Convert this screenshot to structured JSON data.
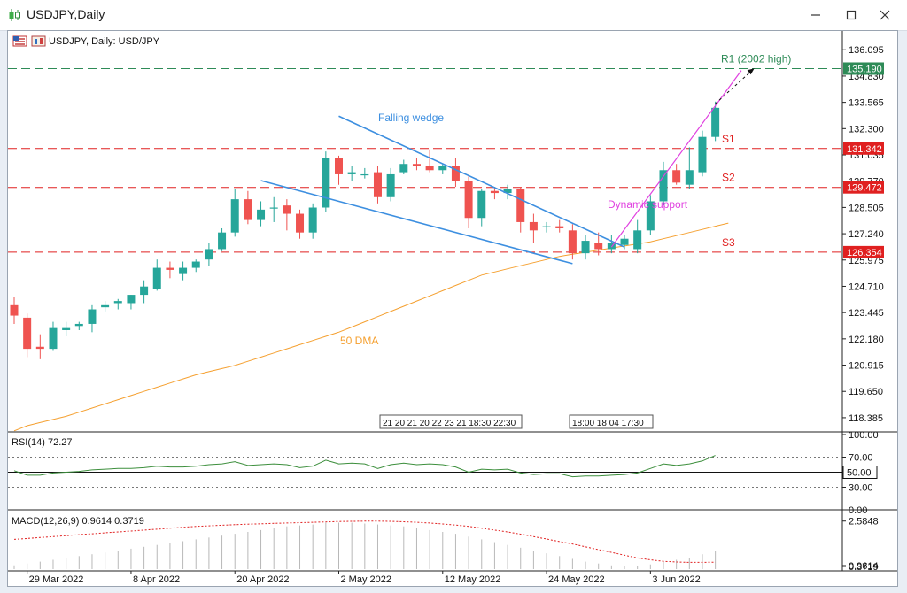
{
  "window": {
    "title": "USDJPY,Daily",
    "controls": [
      "minimize-icon",
      "maximize-icon",
      "close-icon"
    ]
  },
  "chart": {
    "header": "USDJPY, Daily:  USD/JPY",
    "symbol_icons": [
      "flag-icon",
      "chart-icon"
    ]
  },
  "price_axis": {
    "ticks": [
      "136.095",
      "134.830",
      "133.565",
      "132.300",
      "131.035",
      "129.770",
      "128.505",
      "127.240",
      "125.975",
      "124.710",
      "123.445",
      "122.180",
      "120.915",
      "119.650",
      "118.385"
    ]
  },
  "levels": [
    {
      "name": "R1",
      "label": "R1 (2002 high)",
      "price": 135.19,
      "tag": "135.190",
      "color": "#2e8b57"
    },
    {
      "name": "S1",
      "label": "S1",
      "price": 131.342,
      "tag": "131.342",
      "color": "#e02020"
    },
    {
      "name": "S2",
      "label": "S2",
      "price": 129.472,
      "tag": "129.472",
      "color": "#e02020"
    },
    {
      "name": "S3",
      "label": "S3",
      "price": 126.354,
      "tag": "126.354",
      "color": "#e02020"
    }
  ],
  "annotations": {
    "wedge": "Falling wedge",
    "support": "Dynamic support",
    "dma": "50 DMA"
  },
  "time_labels": {
    "group1": "21 20 21 20 22 23 21 18:30 22:30",
    "group2": "18:00 18 04 17:30"
  },
  "date_axis": [
    "29 Mar 2022",
    "8 Apr 2022",
    "20 Apr 2022",
    "2 May 2022",
    "12 May 2022",
    "24 May 2022",
    "3 Jun 2022"
  ],
  "rsi": {
    "label": "RSI(14) 72.27",
    "ticks": [
      "100.00",
      "70.00",
      "50.00",
      "30.00",
      "0.00"
    ],
    "current": 72.27,
    "level": 50,
    "level_tag": "50.00"
  },
  "macd": {
    "label": "MACD(12,26,9) 0.9614 0.3719",
    "ticks": [
      "2.5848",
      "0.9614",
      "0.3719"
    ],
    "main": 0.9614,
    "signal": 0.3719
  },
  "colors": {
    "bull": "#26a69a",
    "bear": "#ef5350",
    "wedge": "#3d8fe0",
    "support": "#e040e0",
    "dma": "#f5a030",
    "rsi": "#3d8f3d",
    "macd_signal": "#e02020"
  },
  "chart_data": {
    "type": "candlestick",
    "candles": [
      {
        "date": "28 Mar 2022",
        "open": 123.8,
        "high": 124.2,
        "low": 122.9,
        "close": 123.3
      },
      {
        "date": "29 Mar 2022",
        "open": 123.2,
        "high": 123.4,
        "low": 121.3,
        "close": 121.7
      },
      {
        "date": "30 Mar 2022",
        "open": 121.8,
        "high": 122.4,
        "low": 121.2,
        "close": 121.7
      },
      {
        "date": "31 Mar 2022",
        "open": 121.7,
        "high": 123.0,
        "low": 121.6,
        "close": 122.7
      },
      {
        "date": "1 Apr 2022",
        "open": 122.6,
        "high": 123.0,
        "low": 122.3,
        "close": 122.7
      },
      {
        "date": "4 Apr 2022",
        "open": 122.8,
        "high": 123.0,
        "low": 122.6,
        "close": 122.9
      },
      {
        "date": "5 Apr 2022",
        "open": 122.9,
        "high": 123.8,
        "low": 122.5,
        "close": 123.6
      },
      {
        "date": "6 Apr 2022",
        "open": 123.7,
        "high": 124.0,
        "low": 123.5,
        "close": 123.8
      },
      {
        "date": "7 Apr 2022",
        "open": 123.9,
        "high": 124.1,
        "low": 123.6,
        "close": 124.0
      },
      {
        "date": "8 Apr 2022",
        "open": 123.9,
        "high": 124.3,
        "low": 123.6,
        "close": 124.3
      },
      {
        "date": "11 Apr 2022",
        "open": 124.3,
        "high": 125.0,
        "low": 123.9,
        "close": 124.7
      },
      {
        "date": "12 Apr 2022",
        "open": 124.6,
        "high": 126.0,
        "low": 124.5,
        "close": 125.6
      },
      {
        "date": "13 Apr 2022",
        "open": 125.6,
        "high": 125.9,
        "low": 125.1,
        "close": 125.5
      },
      {
        "date": "14 Apr 2022",
        "open": 125.3,
        "high": 125.9,
        "low": 125.0,
        "close": 125.6
      },
      {
        "date": "15 Apr 2022",
        "open": 125.6,
        "high": 126.0,
        "low": 125.4,
        "close": 125.9
      },
      {
        "date": "18 Apr 2022",
        "open": 126.0,
        "high": 126.8,
        "low": 125.7,
        "close": 126.5
      },
      {
        "date": "19 Apr 2022",
        "open": 126.5,
        "high": 127.5,
        "low": 126.4,
        "close": 127.3
      },
      {
        "date": "20 Apr 2022",
        "open": 127.3,
        "high": 129.4,
        "low": 127.1,
        "close": 128.9
      },
      {
        "date": "21 Apr 2022",
        "open": 128.9,
        "high": 129.3,
        "low": 127.7,
        "close": 127.9
      },
      {
        "date": "22 Apr 2022",
        "open": 127.9,
        "high": 128.8,
        "low": 127.6,
        "close": 128.4
      },
      {
        "date": "25 Apr 2022",
        "open": 128.5,
        "high": 129.0,
        "low": 127.8,
        "close": 128.5
      },
      {
        "date": "26 Apr 2022",
        "open": 128.6,
        "high": 128.9,
        "low": 127.4,
        "close": 128.2
      },
      {
        "date": "27 Apr 2022",
        "open": 128.2,
        "high": 128.4,
        "low": 127.0,
        "close": 127.3
      },
      {
        "date": "28 Apr 2022",
        "open": 127.3,
        "high": 128.7,
        "low": 127.0,
        "close": 128.5
      },
      {
        "date": "29 Apr 2022",
        "open": 128.5,
        "high": 131.2,
        "low": 128.3,
        "close": 130.9
      },
      {
        "date": "2 May 2022",
        "open": 130.9,
        "high": 131.0,
        "low": 129.6,
        "close": 130.1
      },
      {
        "date": "3 May 2022",
        "open": 130.1,
        "high": 130.5,
        "low": 129.8,
        "close": 130.2
      },
      {
        "date": "4 May 2022",
        "open": 130.1,
        "high": 130.4,
        "low": 129.9,
        "close": 130.1
      },
      {
        "date": "5 May 2022",
        "open": 130.2,
        "high": 130.5,
        "low": 128.7,
        "close": 129.0
      },
      {
        "date": "6 May 2022",
        "open": 129.0,
        "high": 130.4,
        "low": 128.8,
        "close": 130.1
      },
      {
        "date": "9 May 2022",
        "open": 130.2,
        "high": 130.8,
        "low": 130.1,
        "close": 130.6
      },
      {
        "date": "10 May 2022",
        "open": 130.6,
        "high": 130.9,
        "low": 130.3,
        "close": 130.5
      },
      {
        "date": "11 May 2022",
        "open": 130.5,
        "high": 131.3,
        "low": 130.2,
        "close": 130.3
      },
      {
        "date": "12 May 2022",
        "open": 130.3,
        "high": 130.6,
        "low": 130.1,
        "close": 130.5
      },
      {
        "date": "13 May 2022",
        "open": 130.5,
        "high": 130.9,
        "low": 129.5,
        "close": 129.8
      },
      {
        "date": "16 May 2022",
        "open": 129.8,
        "high": 130.0,
        "low": 127.5,
        "close": 128.0
      },
      {
        "date": "17 May 2022",
        "open": 128.0,
        "high": 129.4,
        "low": 127.6,
        "close": 129.3
      },
      {
        "date": "18 May 2022",
        "open": 129.3,
        "high": 129.5,
        "low": 128.9,
        "close": 129.2
      },
      {
        "date": "19 May 2022",
        "open": 129.2,
        "high": 129.6,
        "low": 128.9,
        "close": 129.4
      },
      {
        "date": "20 May 2022",
        "open": 129.4,
        "high": 129.5,
        "low": 127.3,
        "close": 127.8
      },
      {
        "date": "23 May 2022",
        "open": 127.8,
        "high": 128.2,
        "low": 126.8,
        "close": 127.4
      },
      {
        "date": "24 May 2022",
        "open": 127.6,
        "high": 127.8,
        "low": 127.3,
        "close": 127.6
      },
      {
        "date": "25 May 2022",
        "open": 127.6,
        "high": 127.9,
        "low": 127.3,
        "close": 127.5
      },
      {
        "date": "26 May 2022",
        "open": 127.4,
        "high": 127.7,
        "low": 126.0,
        "close": 126.3
      },
      {
        "date": "27 May 2022",
        "open": 126.3,
        "high": 127.2,
        "low": 126.0,
        "close": 126.9
      },
      {
        "date": "30 May 2022",
        "open": 126.8,
        "high": 127.3,
        "low": 126.2,
        "close": 126.5
      },
      {
        "date": "31 May 2022",
        "open": 126.5,
        "high": 127.2,
        "low": 126.3,
        "close": 126.8
      },
      {
        "date": "1 Jun 2022",
        "open": 126.7,
        "high": 127.2,
        "low": 126.5,
        "close": 127.0
      },
      {
        "date": "2 Jun 2022",
        "open": 126.5,
        "high": 127.9,
        "low": 126.3,
        "close": 127.4
      },
      {
        "date": "3 Jun 2022",
        "open": 127.4,
        "high": 129.1,
        "low": 127.2,
        "close": 128.8
      },
      {
        "date": "6 Jun 2022",
        "open": 128.8,
        "high": 130.7,
        "low": 128.6,
        "close": 130.3
      },
      {
        "date": "7 Jun 2022",
        "open": 130.3,
        "high": 130.6,
        "low": 129.6,
        "close": 129.7
      },
      {
        "date": "8 Jun 2022",
        "open": 129.6,
        "high": 131.4,
        "low": 129.4,
        "close": 130.3
      },
      {
        "date": "9 Jun 2022",
        "open": 130.2,
        "high": 132.2,
        "low": 130.0,
        "close": 131.9
      },
      {
        "date": "10 Jun 2022",
        "open": 131.9,
        "high": 133.6,
        "low": 131.7,
        "close": 133.3
      }
    ],
    "ma50": [
      118.0,
      118.15,
      118.3,
      118.45,
      118.65,
      118.85,
      119.05,
      119.25,
      119.45,
      119.65,
      119.85,
      120.05,
      120.25,
      120.45,
      120.6,
      120.75,
      120.9,
      121.1,
      121.3,
      121.5,
      121.7,
      121.9,
      122.1,
      122.3,
      122.5,
      122.75,
      123.0,
      123.25,
      123.5,
      123.75,
      124.0,
      124.25,
      124.5,
      124.75,
      125.0,
      125.25,
      125.4,
      125.55,
      125.7,
      125.85,
      126.0,
      126.15,
      126.25,
      126.35,
      126.45,
      126.55,
      126.65,
      126.75,
      126.85,
      127.0,
      127.15,
      127.3,
      127.45,
      127.6,
      127.75
    ],
    "rsi": [
      52,
      46,
      46,
      49,
      50,
      51,
      53,
      54,
      55,
      55,
      56,
      58,
      57,
      57,
      58,
      60,
      61,
      64,
      59,
      60,
      61,
      60,
      56,
      58,
      66,
      61,
      62,
      61,
      55,
      60,
      62,
      60,
      61,
      60,
      57,
      50,
      54,
      53,
      54,
      49,
      47,
      48,
      48,
      44,
      45,
      45,
      46,
      47,
      49,
      55,
      61,
      59,
      61,
      65,
      72.27
    ],
    "macd_hist": [
      0.2,
      0.3,
      0.4,
      0.5,
      0.6,
      0.7,
      0.8,
      0.9,
      1.0,
      1.1,
      1.2,
      1.3,
      1.4,
      1.5,
      1.6,
      1.7,
      1.8,
      1.9,
      2.0,
      2.1,
      2.2,
      2.3,
      2.35,
      2.4,
      2.5,
      2.5,
      2.5,
      2.45,
      2.4,
      2.35,
      2.3,
      2.2,
      2.1,
      2.0,
      1.9,
      1.75,
      1.6,
      1.45,
      1.3,
      1.15,
      1.0,
      0.85,
      0.7,
      0.55,
      0.4,
      0.3,
      0.2,
      0.15,
      0.15,
      0.25,
      0.4,
      0.5,
      0.6,
      0.8,
      0.9614
    ],
    "macd_signal": [
      1.6,
      1.65,
      1.7,
      1.75,
      1.8,
      1.85,
      1.9,
      1.95,
      2.0,
      2.05,
      2.1,
      2.15,
      2.2,
      2.25,
      2.3,
      2.33,
      2.36,
      2.39,
      2.42,
      2.44,
      2.46,
      2.48,
      2.5,
      2.52,
      2.54,
      2.56,
      2.57,
      2.58,
      2.58,
      2.57,
      2.55,
      2.52,
      2.48,
      2.43,
      2.37,
      2.3,
      2.2,
      2.1,
      2.0,
      1.88,
      1.75,
      1.62,
      1.48,
      1.35,
      1.2,
      1.05,
      0.9,
      0.75,
      0.6,
      0.5,
      0.42,
      0.38,
      0.36,
      0.36,
      0.3719
    ],
    "wedge_upper": {
      "from": {
        "i": 25,
        "p": 132.9
      },
      "to": {
        "i": 47,
        "p": 126.6
      }
    },
    "wedge_lower": {
      "from": {
        "i": 19,
        "p": 129.8
      },
      "to": {
        "i": 43,
        "p": 125.8
      }
    },
    "dynamic_support": {
      "from": {
        "i": 46,
        "p": 126.6
      },
      "to": {
        "i": 56,
        "p": 135.1
      }
    },
    "projection": {
      "from": {
        "i": 54,
        "p": 133.5
      },
      "to": {
        "i": 57,
        "p": 135.2
      }
    },
    "price_range": [
      117.7,
      137.0
    ],
    "rsi_range": [
      0,
      100
    ],
    "macd_range": [
      0,
      3.0
    ]
  }
}
